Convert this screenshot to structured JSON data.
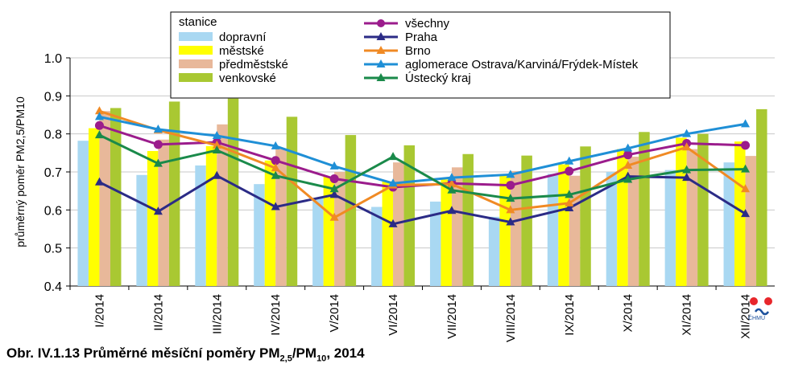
{
  "caption": {
    "prefix": "Obr. IV.1.13  Průměrné měsíční poměry PM",
    "sub1": "2,5",
    "mid": "/PM",
    "sub2": "10",
    "suffix": ", 2014"
  },
  "logo_text": "ČHMÚ",
  "chart_data": {
    "type": "bar",
    "title": "",
    "ylabel": "průměrný poměr PM2,5/PM10",
    "ylim": [
      0.4,
      1.0
    ],
    "yticks": [
      "0.4",
      "0.5",
      "0.6",
      "0.7",
      "0.8",
      "0.9",
      "1.0"
    ],
    "grid": true,
    "legend_placement": "top",
    "categories": [
      "I/2014",
      "II/2014",
      "III/2014",
      "IV/2014",
      "V/2014",
      "VI/2014",
      "VII/2014",
      "VIII/2014",
      "IX/2014",
      "X/2014",
      "XI/2014",
      "XII/2014"
    ],
    "legend_title": "stanice",
    "bar_series": [
      {
        "name": "dopravní",
        "color": "#a9d8f2",
        "values": [
          0.782,
          0.692,
          0.717,
          0.668,
          0.632,
          0.608,
          0.622,
          0.582,
          0.695,
          0.7,
          0.705,
          0.725
        ]
      },
      {
        "name": "městské",
        "color": "#ffff00",
        "values": [
          0.815,
          0.755,
          0.768,
          0.73,
          0.688,
          0.675,
          0.68,
          0.69,
          0.72,
          0.76,
          0.79,
          0.78
        ]
      },
      {
        "name": "předměstské",
        "color": "#e8b89a",
        "values": [
          0.86,
          0.785,
          0.825,
          0.76,
          0.7,
          0.725,
          0.712,
          0.702,
          0.69,
          0.74,
          0.76,
          0.742
        ]
      },
      {
        "name": "venkovské",
        "color": "#a9c832",
        "values": [
          0.868,
          0.885,
          0.893,
          0.845,
          0.797,
          0.77,
          0.747,
          0.743,
          0.767,
          0.805,
          0.8,
          0.865
        ]
      }
    ],
    "line_series": [
      {
        "name": "všechny",
        "color": "#9b1c8c",
        "marker": "circle",
        "values": [
          0.822,
          0.772,
          0.778,
          0.73,
          0.682,
          0.66,
          0.67,
          0.665,
          0.702,
          0.745,
          0.775,
          0.77
        ]
      },
      {
        "name": "Praha",
        "color": "#2b2b86",
        "marker": "triangle",
        "values": [
          0.673,
          0.596,
          0.69,
          0.608,
          0.64,
          0.563,
          0.598,
          0.568,
          0.605,
          0.688,
          0.685,
          0.59
        ]
      },
      {
        "name": "Brno",
        "color": "#f08a24",
        "marker": "triangle",
        "values": [
          0.86,
          0.81,
          0.77,
          0.71,
          0.58,
          0.665,
          0.668,
          0.6,
          0.618,
          0.717,
          0.765,
          0.655
        ]
      },
      {
        "name": "aglomerace Ostrava/Karviná/Frýdek-Místek",
        "color": "#1f8fd6",
        "marker": "triangle",
        "values": [
          0.845,
          0.812,
          0.795,
          0.768,
          0.715,
          0.67,
          0.685,
          0.693,
          0.728,
          0.762,
          0.8,
          0.826
        ]
      },
      {
        "name": "Ústecký kraj",
        "color": "#1a8a4a",
        "marker": "triangle",
        "values": [
          0.797,
          0.722,
          0.757,
          0.69,
          0.655,
          0.74,
          0.652,
          0.63,
          0.64,
          0.68,
          0.705,
          0.707
        ]
      }
    ]
  }
}
